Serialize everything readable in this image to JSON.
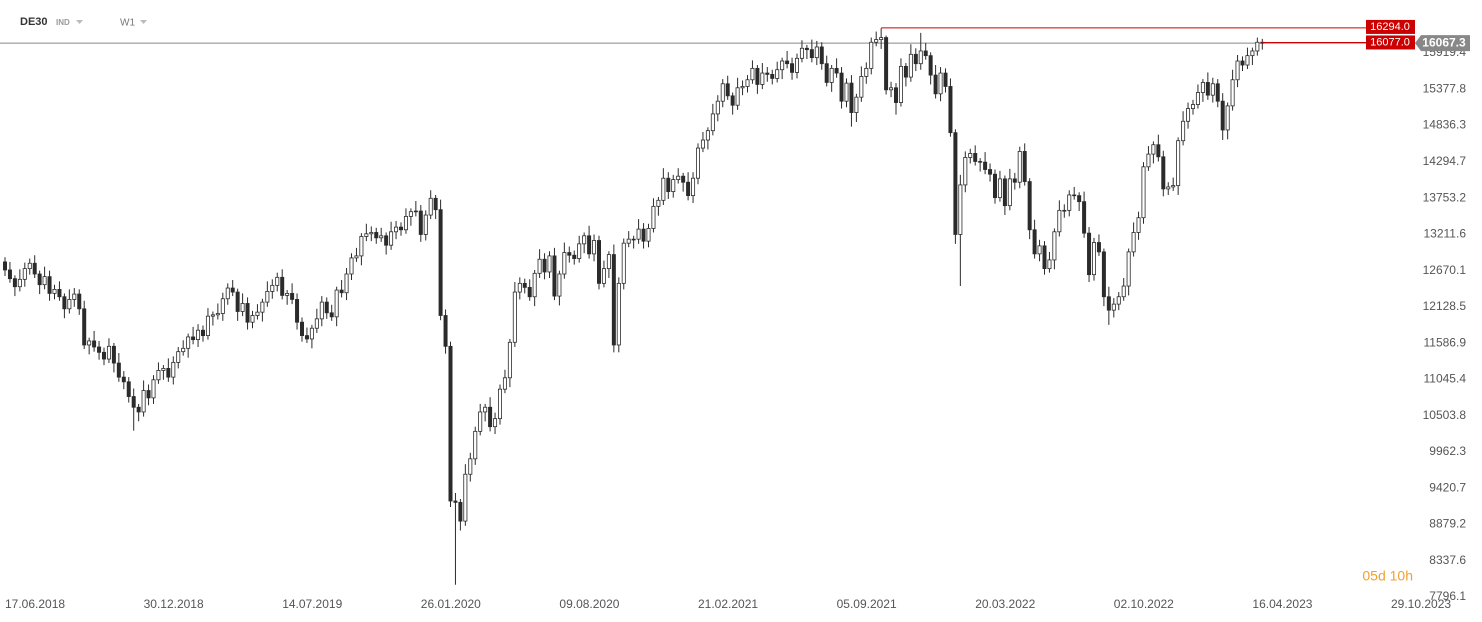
{
  "header": {
    "symbol": "DE30",
    "kind": "IND",
    "interval": "W1"
  },
  "chart_data": {
    "type": "candlestick",
    "open": [
      12800,
      12680,
      12550,
      12430,
      12540,
      12700,
      12780,
      12620,
      12460,
      12580,
      12330,
      12390,
      12280,
      12100,
      12240,
      12320,
      12100,
      11560,
      11620,
      11530,
      11450,
      11350,
      11540,
      11290,
      11080,
      11010,
      10790,
      10630,
      10560,
      10880,
      10770,
      11040,
      11180,
      11210,
      11080,
      11300,
      11460,
      11510,
      11680,
      11640,
      11780,
      11700,
      11990,
      12010,
      12030,
      12250,
      12410,
      12350,
      12060,
      12180,
      11900,
      12000,
      12050,
      12200,
      12360,
      12450,
      12570,
      12300,
      12330,
      12240,
      11900,
      11700,
      11650,
      11810,
      11950,
      12200,
      12040,
      11980,
      12380,
      12340,
      12620,
      12860,
      12890,
      13180,
      13220,
      13240,
      13160,
      13190,
      13050,
      13250,
      13320,
      13280,
      13480,
      13550,
      13560,
      13210,
      13500,
      13750,
      13580,
      12000,
      11540,
      9230,
      9210,
      8930,
      9630,
      9860,
      10270,
      10560,
      10630,
      10340,
      10460,
      10900,
      11070,
      11600,
      12350,
      12480,
      12420,
      12280,
      12630,
      12840,
      12650,
      12890,
      12290,
      12620,
      12940,
      12900,
      12850,
      13070,
      13190,
      12920,
      13120,
      12480,
      12700,
      12910,
      11560,
      12480,
      13080,
      13140,
      13140,
      13290,
      13110,
      13300,
      13630,
      13720,
      14050,
      13850,
      14030,
      14080,
      13990,
      13790,
      14050,
      14500,
      14620,
      14760,
      15010,
      15200,
      15460,
      15280,
      15140,
      15400,
      15420,
      15520,
      15690,
      15450,
      15620,
      15600,
      15540,
      15670,
      15800,
      15760,
      15630,
      15840,
      15990,
      15970,
      15850,
      16010,
      15760,
      15480,
      15690,
      15620,
      15200,
      15470,
      15030,
      15260,
      15570,
      15690,
      16080,
      16120,
      16150,
      15370,
      15400,
      15180,
      15720,
      15560,
      15900,
      15760,
      15950,
      15880,
      15590,
      15310,
      15620,
      15420,
      14730,
      13210,
      13950,
      14360,
      14420,
      14300,
      14290,
      14180,
      14110,
      13760,
      14040,
      13640,
      14040,
      13990,
      14450,
      14000,
      13280,
      12920,
      13040,
      12700,
      12830,
      13250,
      13570,
      13570,
      13800,
      13790,
      13700,
      13230,
      12610,
      13090,
      12950,
      12280,
      12080,
      12170,
      12280,
      12440,
      12950,
      13240,
      13460,
      14220,
      14410,
      14550,
      14370,
      13890,
      13920,
      13940,
      14610,
      14900,
      15090,
      15150,
      15330,
      15480,
      15290,
      15460,
      15200,
      14770,
      15130,
      15520,
      15800,
      15740,
      15880,
      15950,
      16080
    ],
    "high": [
      12870,
      12800,
      12600,
      12690,
      12790,
      12850,
      12900,
      12670,
      12730,
      12670,
      12460,
      12510,
      12330,
      12390,
      12410,
      12390,
      12220,
      11670,
      11770,
      11620,
      11520,
      11660,
      11590,
      11440,
      11170,
      11080,
      10910,
      10680,
      11030,
      10970,
      11110,
      11300,
      11260,
      11360,
      11390,
      11530,
      11630,
      11730,
      11830,
      11870,
      11850,
      12110,
      12060,
      12180,
      12340,
      12480,
      12530,
      12400,
      12330,
      12270,
      12070,
      12170,
      12250,
      12510,
      12540,
      12640,
      12690,
      12380,
      12480,
      12330,
      11970,
      11820,
      11860,
      12100,
      12290,
      12270,
      12160,
      12430,
      12530,
      12710,
      12930,
      13010,
      13230,
      13370,
      13330,
      13310,
      13310,
      13240,
      13400,
      13410,
      13390,
      13600,
      13600,
      13710,
      13650,
      13570,
      13870,
      13800,
      13730,
      12090,
      11610,
      9350,
      9260,
      9780,
      9950,
      10340,
      10680,
      10680,
      10780,
      10550,
      10970,
      11190,
      11650,
      12500,
      12570,
      12550,
      12540,
      12680,
      12990,
      12930,
      12960,
      13010,
      12670,
      13090,
      13030,
      12970,
      13190,
      13240,
      13340,
      13210,
      13190,
      12820,
      12960,
      13060,
      12570,
      13150,
      13260,
      13190,
      13440,
      13380,
      13370,
      13750,
      13770,
      14200,
      14140,
      14100,
      14200,
      14130,
      14140,
      14140,
      14570,
      14740,
      14810,
      15160,
      15290,
      15530,
      15580,
      15330,
      15550,
      15510,
      15590,
      15810,
      15740,
      15770,
      15710,
      15670,
      15790,
      15850,
      15950,
      15850,
      15910,
      16110,
      16040,
      16120,
      16100,
      16080,
      15880,
      15740,
      15840,
      15710,
      15540,
      15590,
      15310,
      15720,
      15780,
      16150,
      16240,
      16290,
      16180,
      15490,
      15470,
      15840,
      15770,
      16050,
      15990,
      16220,
      16070,
      15930,
      15740,
      15710,
      15690,
      15540,
      14780,
      14100,
      14450,
      14490,
      14540,
      14350,
      14440,
      14270,
      14180,
      14160,
      14090,
      14190,
      14130,
      14520,
      14570,
      14050,
      13430,
      13130,
      13110,
      12950,
      13300,
      13720,
      13660,
      13870,
      13920,
      13840,
      13850,
      13320,
      13160,
      13210,
      13000,
      12430,
      12260,
      12350,
      12560,
      13000,
      13390,
      13550,
      14290,
      14530,
      14600,
      14700,
      14460,
      13990,
      14060,
      14660,
      15050,
      15180,
      15220,
      15450,
      15530,
      15630,
      15550,
      15530,
      15320,
      15180,
      15670,
      15890,
      15870,
      16000,
      16000,
      16150,
      16130
    ],
    "low": [
      12590,
      12490,
      12290,
      12360,
      12430,
      12610,
      12560,
      12320,
      12390,
      12220,
      12240,
      12220,
      11960,
      12030,
      12130,
      12010,
      11500,
      11420,
      11460,
      11340,
      11260,
      11290,
      11150,
      11010,
      10900,
      10700,
      10280,
      10420,
      10490,
      10660,
      10680,
      10980,
      11040,
      11010,
      10970,
      11210,
      11400,
      11370,
      11570,
      11530,
      11610,
      11640,
      11850,
      11940,
      11920,
      12160,
      12290,
      11920,
      11990,
      11790,
      11810,
      11940,
      11910,
      12130,
      12250,
      12360,
      12240,
      12160,
      12170,
      11790,
      11610,
      11590,
      11510,
      11740,
      11840,
      11950,
      11920,
      11840,
      12270,
      12230,
      12530,
      12800,
      12750,
      13110,
      13110,
      13070,
      13100,
      12910,
      12980,
      13140,
      13190,
      13220,
      13340,
      13480,
      13100,
      13120,
      13440,
      13440,
      11930,
      11430,
      9140,
      7980,
      8790,
      8860,
      9520,
      9770,
      10210,
      10420,
      10270,
      10230,
      10370,
      10840,
      10930,
      11530,
      12240,
      12330,
      12220,
      12140,
      12560,
      12540,
      12560,
      12230,
      12150,
      12550,
      12790,
      12760,
      12790,
      12930,
      12850,
      12810,
      12390,
      12420,
      12560,
      11450,
      11450,
      12390,
      13020,
      13000,
      13070,
      13000,
      13020,
      13240,
      13490,
      13650,
      13740,
      13760,
      13970,
      13850,
      13720,
      13680,
      13960,
      14440,
      14480,
      14690,
      14900,
      15110,
      15220,
      15000,
      15070,
      15290,
      15330,
      15460,
      15310,
      15380,
      15490,
      15450,
      15480,
      15530,
      15690,
      15520,
      15540,
      15780,
      15830,
      15780,
      15740,
      15670,
      15420,
      15340,
      15550,
      15090,
      15110,
      14820,
      14890,
      15190,
      15460,
      15600,
      16020,
      15980,
      15300,
      15260,
      15000,
      15120,
      15420,
      15490,
      15650,
      15670,
      15820,
      15450,
      15240,
      15200,
      15330,
      14670,
      13070,
      12440,
      13840,
      14270,
      14240,
      14150,
      14110,
      14000,
      13670,
      13700,
      13500,
      13570,
      13880,
      13900,
      13940,
      13140,
      12850,
      12810,
      12610,
      12640,
      12690,
      13180,
      13460,
      13480,
      13730,
      13560,
      13160,
      12500,
      12520,
      12890,
      12140,
      11860,
      11970,
      12080,
      12220,
      12300,
      12880,
      13130,
      13370,
      14160,
      14270,
      14300,
      13780,
      13800,
      13860,
      13800,
      14540,
      14790,
      15000,
      15090,
      15190,
      15220,
      15180,
      15110,
      14620,
      14630,
      15060,
      15410,
      15650,
      15680,
      15740,
      15880,
      15970
    ],
    "close": [
      12680,
      12550,
      12430,
      12540,
      12700,
      12780,
      12620,
      12460,
      12580,
      12330,
      12390,
      12280,
      12100,
      12240,
      12320,
      12100,
      11560,
      11620,
      11530,
      11450,
      11350,
      11540,
      11290,
      11080,
      11010,
      10790,
      10630,
      10560,
      10880,
      10770,
      11040,
      11180,
      11210,
      11080,
      11300,
      11460,
      11510,
      11680,
      11640,
      11780,
      11700,
      11990,
      12010,
      12030,
      12250,
      12410,
      12350,
      12060,
      12180,
      11900,
      12000,
      12050,
      12200,
      12360,
      12450,
      12570,
      12300,
      12330,
      12240,
      11900,
      11700,
      11650,
      11810,
      11950,
      12200,
      12040,
      11980,
      12380,
      12340,
      12620,
      12860,
      12890,
      13180,
      13220,
      13240,
      13160,
      13190,
      13050,
      13250,
      13320,
      13280,
      13480,
      13550,
      13560,
      13210,
      13500,
      13750,
      13580,
      12000,
      11540,
      9230,
      9210,
      8930,
      9630,
      9860,
      10270,
      10560,
      10630,
      10340,
      10460,
      10900,
      11070,
      11600,
      12350,
      12480,
      12420,
      12280,
      12630,
      12840,
      12650,
      12890,
      12290,
      12620,
      12940,
      12900,
      12850,
      13070,
      13190,
      12920,
      13120,
      12480,
      12700,
      12910,
      11560,
      12480,
      13080,
      13140,
      13140,
      13290,
      13110,
      13300,
      13630,
      13720,
      14050,
      13850,
      14030,
      14080,
      13990,
      13790,
      14050,
      14500,
      14620,
      14760,
      15010,
      15200,
      15460,
      15280,
      15140,
      15400,
      15420,
      15520,
      15690,
      15450,
      15620,
      15600,
      15540,
      15670,
      15800,
      15760,
      15630,
      15840,
      15990,
      15970,
      15850,
      16010,
      15760,
      15480,
      15690,
      15620,
      15200,
      15470,
      15030,
      15260,
      15570,
      15690,
      16080,
      16120,
      16150,
      15370,
      15400,
      15180,
      15720,
      15560,
      15900,
      15760,
      15950,
      15880,
      15590,
      15310,
      15620,
      15420,
      14730,
      13210,
      13950,
      14360,
      14420,
      14300,
      14290,
      14180,
      14110,
      13760,
      14040,
      13640,
      14040,
      13990,
      14450,
      14000,
      13280,
      12920,
      13040,
      12700,
      12830,
      13250,
      13570,
      13570,
      13800,
      13790,
      13700,
      13230,
      12610,
      13090,
      12950,
      12280,
      12080,
      12170,
      12280,
      12440,
      12950,
      13240,
      13460,
      14220,
      14410,
      14550,
      14370,
      13890,
      13920,
      13940,
      14610,
      14900,
      15090,
      15150,
      15330,
      15480,
      15290,
      15460,
      15200,
      14770,
      15130,
      15520,
      15800,
      15740,
      15880,
      15950,
      16080,
      16067
    ],
    "up_color": "#ffffff",
    "down_color": "#2b2b2b",
    "wick_color": "#2b2b2b",
    "xlim": [
      0,
      285
    ],
    "xticks": [
      {
        "value": 0,
        "label": "17.06.2018"
      },
      {
        "value": 28,
        "label": "30.12.2018"
      },
      {
        "value": 56,
        "label": "14.07.2019"
      },
      {
        "value": 84,
        "label": "26.01.2020"
      },
      {
        "value": 112,
        "label": "09.08.2020"
      },
      {
        "value": 140,
        "label": "21.02.2021"
      },
      {
        "value": 168,
        "label": "05.09.2021"
      },
      {
        "value": 196,
        "label": "20.03.2022"
      },
      {
        "value": 224,
        "label": "02.10.2022"
      },
      {
        "value": 252,
        "label": "16.04.2023"
      },
      {
        "value": 280,
        "label": "29.10.2023"
      }
    ],
    "ylim": [
      7752,
      16711
    ],
    "yticks": [
      15919.4,
      15377.8,
      14836.3,
      14294.7,
      13753.2,
      13211.6,
      12670.1,
      12128.5,
      11586.9,
      11045.4,
      10503.8,
      9962.3,
      9420.7,
      8879.2,
      8337.6,
      7796.1
    ],
    "grid": false,
    "price_line": {
      "value": 16067.3,
      "color": "#888888"
    },
    "levels": [
      {
        "value": 16294.0,
        "label": "16294.0",
        "color": "#cc0000"
      },
      {
        "value": 16077.0,
        "label": "16077.0",
        "color": "#cc0000"
      }
    ],
    "countdown": "05d 10h"
  }
}
